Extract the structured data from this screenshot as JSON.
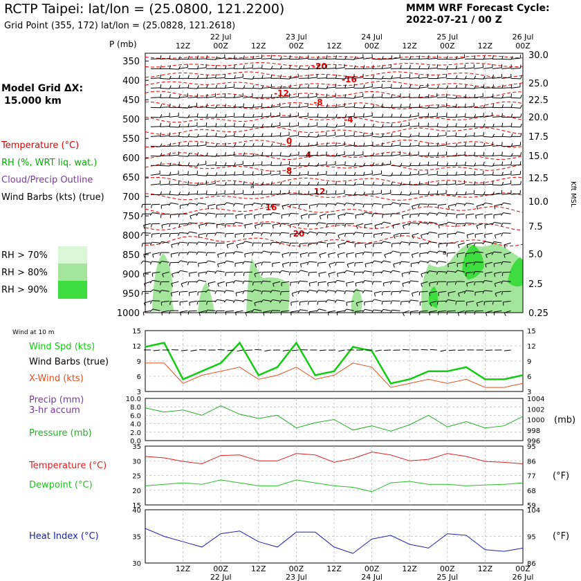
{
  "header": {
    "title": "RCTP Taipei:  lat/lon = (25.0800, 121.2200)",
    "subtitle": "Grid Point (355, 172) lat/lon = (25.0828, 121.2618)",
    "cycle_title": "MMM WRF Forecast Cycle:",
    "cycle_value": "2022-07-21 / 00  Z"
  },
  "model_grid": {
    "label": "Model Grid ΔX:",
    "value": "15.000 km"
  },
  "time_axis": {
    "top_dates": [
      "22 Jul",
      "23 Jul",
      "24 Jul",
      "25 Jul",
      "26 Jul"
    ],
    "bottom_dates": [
      "22 Jul",
      "23 Jul",
      "24 Jul",
      "25 Jul",
      "26 Jul"
    ],
    "hour_labels": [
      "12Z",
      "00Z",
      "12Z",
      "00Z",
      "12Z",
      "00Z",
      "12Z",
      "00Z",
      "12Z",
      "00Z"
    ]
  },
  "colors": {
    "temperature": "#e00000",
    "rh_label": "#00b000",
    "cloud": "#7a3a9a",
    "rh70": "#d9f7d6",
    "rh80": "#a3e59a",
    "rh90": "#3fdc3f",
    "wind_spd": "#11cc11",
    "xwind": "#e8501a",
    "pressure": "#22b022",
    "t2": "#e02020",
    "td2": "#22c022",
    "heat": "#2020b0"
  },
  "legend_upper": {
    "temperature": "Temperature (°C)",
    "rh": "RH (%, WRT liq. wat.)",
    "cloud": "Cloud/Precip Outline",
    "barbs": "Wind Barbs (kts) (true)",
    "rh70": "RH > 70%",
    "rh80": "RH > 80%",
    "rh90": "RH > 90%"
  },
  "upper_panel": {
    "pressure_title": "P (mb)",
    "pressure_levels": [
      "350",
      "400",
      "450",
      "500",
      "550",
      "600",
      "650",
      "700",
      "750",
      "800",
      "850",
      "900",
      "950",
      "1000"
    ],
    "height_labels": [
      "30.0",
      "25.0",
      "22.5",
      "20.0",
      "17.5",
      "15.0",
      "12.5",
      "10.0",
      "7.5",
      "5.0",
      "2.5",
      "0.25"
    ],
    "height_units": "Kft MSL",
    "temp_labels": [
      "-20",
      "-16",
      "-12",
      "-8",
      "-4",
      "0",
      "4",
      "8",
      "12",
      "16",
      "20"
    ]
  },
  "lower_legend": {
    "wind10": "Wind at 10 m",
    "wind_spd": "Wind Spd (kts)",
    "wind_barbs": "Wind Barbs (true)",
    "xwind": "X-Wind (kts)",
    "precip": "Precip (mm)",
    "precip_accum": "3-hr accum",
    "pressure": "Pressure (mb)",
    "temperature": "Temperature (°C)",
    "dewpoint": "Dewpoint (°C)",
    "heat_index": "Heat Index (°C)"
  },
  "units": {
    "mb": "(mb)",
    "deg_f_1": "(°F)",
    "deg_f_2": "(°F)"
  },
  "chart_data": [
    {
      "type": "line",
      "title": "Wind at 10 m",
      "x_hours": [
        0,
        6,
        12,
        18,
        24,
        30,
        36,
        42,
        48,
        54,
        60,
        66,
        72,
        78,
        84,
        90,
        96,
        102,
        108,
        114,
        120
      ],
      "yticks_left": [
        "15",
        "12",
        "9",
        "6",
        "3"
      ],
      "yticks_right": [
        "15",
        "12",
        "9",
        "6",
        "3"
      ],
      "ylim": [
        0,
        15
      ],
      "series": [
        {
          "name": "Wind Spd (kts)",
          "values": [
            11,
            12,
            3,
            5,
            7,
            12,
            4,
            6,
            12,
            4,
            5,
            11,
            10,
            2,
            3,
            5,
            5,
            6,
            3,
            3,
            4
          ]
        },
        {
          "name": "X-Wind (kts)",
          "values": [
            7,
            7,
            2,
            4,
            5,
            6,
            3,
            4,
            6,
            3,
            4,
            7,
            6,
            1,
            2,
            3,
            2,
            3,
            1,
            1,
            2
          ]
        }
      ]
    },
    {
      "type": "line",
      "title": "Pressure (mb)",
      "x_hours": [
        0,
        6,
        12,
        18,
        24,
        30,
        36,
        42,
        48,
        54,
        60,
        66,
        72,
        78,
        84,
        90,
        96,
        102,
        108,
        114,
        120
      ],
      "yticks_left": [
        "10.0",
        "8.0",
        "6.0",
        "4.0",
        "2.0",
        "0.0"
      ],
      "yticks_right": [
        "1004",
        "1002",
        "1000",
        "998",
        "996"
      ],
      "ylim": [
        996,
        1004
      ],
      "series": [
        {
          "name": "Pressure (mb)",
          "values": [
            1002.2,
            1001.4,
            1001.8,
            1000.8,
            1002.6,
            1001.0,
            1000.2,
            1000.8,
            998.4,
            999.4,
            1000.0,
            998.0,
            998.8,
            997.8,
            999.0,
            1000.8,
            998.6,
            999.6,
            998.4,
            998.8,
            1000.6
          ]
        }
      ]
    },
    {
      "type": "line",
      "title": "Temperature / Dewpoint",
      "x_hours": [
        0,
        6,
        12,
        18,
        24,
        30,
        36,
        42,
        48,
        54,
        60,
        66,
        72,
        78,
        84,
        90,
        96,
        102,
        108,
        114,
        120
      ],
      "yticks_left": [
        "35",
        "30",
        "25",
        "20",
        "15"
      ],
      "yticks_right": [
        "95",
        "86",
        "77",
        "68",
        "59"
      ],
      "ylim": [
        15,
        35
      ],
      "series": [
        {
          "name": "Temperature (°C)",
          "values": [
            31.5,
            31.0,
            29.8,
            29.0,
            31.8,
            32.0,
            30.0,
            30.0,
            32.5,
            32.0,
            29.5,
            30.8,
            33.0,
            32.0,
            30.0,
            30.5,
            32.5,
            31.5,
            29.8,
            29.5,
            29.0
          ]
        },
        {
          "name": "Dewpoint (°C)",
          "values": [
            21.5,
            22.0,
            22.5,
            22.0,
            23.5,
            22.5,
            21.5,
            21.5,
            23.5,
            22.5,
            21.5,
            21.0,
            19.5,
            22.5,
            23.0,
            22.0,
            22.0,
            21.5,
            21.8,
            22.0,
            22.5
          ]
        }
      ]
    },
    {
      "type": "line",
      "title": "Heat Index (°C)",
      "x_hours": [
        0,
        6,
        12,
        18,
        24,
        30,
        36,
        42,
        48,
        54,
        60,
        66,
        72,
        78,
        84,
        90,
        96,
        102,
        108,
        114,
        120
      ],
      "yticks_left": [
        "40",
        "35",
        "30"
      ],
      "yticks_right": [
        "104",
        "95",
        "86"
      ],
      "ylim": [
        30,
        40
      ],
      "series": [
        {
          "name": "Heat Index (°C)",
          "values": [
            36.5,
            35.0,
            34.0,
            33.0,
            35.5,
            36.0,
            34.0,
            33.0,
            35.8,
            35.8,
            33.0,
            31.8,
            34.5,
            35.2,
            33.5,
            32.8,
            35.5,
            35.2,
            32.5,
            32.2,
            32.8
          ]
        }
      ]
    }
  ]
}
